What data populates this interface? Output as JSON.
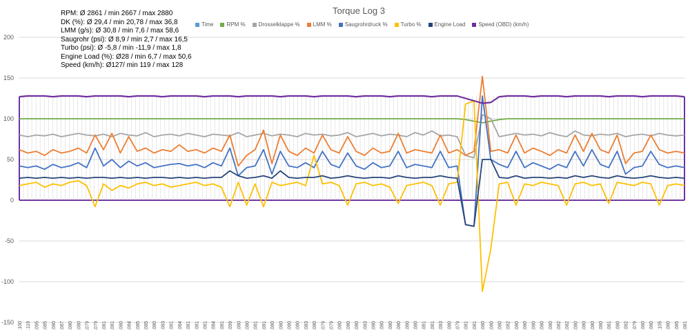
{
  "chart_data": {
    "type": "line",
    "title": "Torque Log 3",
    "ylim": [
      -150,
      200
    ],
    "yticks": [
      -150,
      -100,
      -50,
      0,
      50,
      100,
      150,
      200
    ],
    "stats": [
      "RPM: Ø 2861 / min 2667 / max 2880",
      "DK (%): Ø 29,4 / min 20,78 / max 36,8",
      "LMM (g/s): Ø 30,8 / min 7,6 / max 58,6",
      "Saugrohr (psi): Ø 8,9 / min 2,7 / max 16,5",
      "Turbo (psi): Ø -5,8 / min -11,9 / max 1,8",
      "Engine Load (%): Ø28 / min 6,7 / max 50,6",
      "Speed (km/h): Ø127/ min 119 / max 128"
    ],
    "x_labels": [
      "1:42.100",
      "1:44.119",
      "1:46.095",
      "1:48.085",
      "1:50.080",
      "1:52.087",
      "1:54.080",
      "1:56.080",
      "1:58.079",
      "2:00.079",
      "2:02.081",
      "2:04.081",
      "2:06.080",
      "2:08.084",
      "2:10.085",
      "2:12.085",
      "2:14.080",
      "2:16.083",
      "2:18.081",
      "2:20.084",
      "2:22.081",
      "2:24.081",
      "2:26.081",
      "2:28.084",
      "2:30.081",
      "2:32.099",
      "2:34.080",
      "2:36.080",
      "2:38.081",
      "2:40.081",
      "2:42.080",
      "2:44.080",
      "2:46.080",
      "2:48.080",
      "2:50.083",
      "2:52.080",
      "2:54.079",
      "2:56.079",
      "2:58.080",
      "3:00.080",
      "3:02.080",
      "3:04.083",
      "3:06.080",
      "3:08.080",
      "3:10.080",
      "3:12.080",
      "3:14.080",
      "3:16.080",
      "3:18.081",
      "3:20.081",
      "3:22.083",
      "3:24.080",
      "3:26.079",
      "3:28.081",
      "3:30.081",
      "3:32.080",
      "3:34.080",
      "3:36.080",
      "3:38.082",
      "3:40.080",
      "3:42.080",
      "3:44.080",
      "3:46.080",
      "3:48.080",
      "3:50.082",
      "3:52.082",
      "3:54.080",
      "3:56.080",
      "3:58.080",
      "4:00.080",
      "4:02.081",
      "4:04.080",
      "4:06.082",
      "4:08.079",
      "4:10.080",
      "4:12.080",
      "4:14.105",
      "4:16.080",
      "4:18.085",
      "4:20.081"
    ],
    "series": [
      {
        "name": "Time",
        "color": "#5b9bd5",
        "legend_only": true,
        "values": []
      },
      {
        "name": "RPM %",
        "color": "#70ad47",
        "values": [
          100,
          100,
          100,
          100,
          100,
          100,
          100,
          100,
          100,
          100,
          100,
          100,
          100,
          100,
          100,
          100,
          100,
          100,
          100,
          100,
          100,
          100,
          100,
          100,
          100,
          100,
          100,
          100,
          100,
          100,
          100,
          100,
          100,
          100,
          100,
          100,
          100,
          100,
          100,
          100,
          100,
          100,
          100,
          100,
          100,
          100,
          100,
          100,
          100,
          100,
          100,
          100,
          100,
          99,
          97,
          95,
          97,
          99,
          100,
          100,
          100,
          100,
          100,
          100,
          100,
          100,
          100,
          100,
          100,
          100,
          100,
          100,
          100,
          100,
          100,
          100,
          100,
          100,
          100,
          100
        ]
      },
      {
        "name": "Drosselklappe %",
        "color": "#a5a5a5",
        "values": [
          80,
          78,
          80,
          79,
          81,
          78,
          80,
          82,
          80,
          79,
          81,
          78,
          82,
          80,
          79,
          83,
          78,
          80,
          81,
          79,
          82,
          80,
          78,
          81,
          80,
          79,
          83,
          78,
          80,
          82,
          79,
          81,
          80,
          78,
          82,
          80,
          81,
          79,
          80,
          83,
          78,
          80,
          82,
          79,
          81,
          80,
          78,
          83,
          80,
          85,
          79,
          80,
          78,
          55,
          52,
          105,
          100,
          78,
          80,
          82,
          80,
          81,
          79,
          83,
          80,
          78,
          85,
          80,
          79,
          81,
          80,
          82,
          78,
          80,
          81,
          79,
          82,
          80,
          79,
          80
        ]
      },
      {
        "name": "LMM %",
        "color": "#ed7d31",
        "values": [
          62,
          58,
          60,
          55,
          62,
          58,
          60,
          64,
          58,
          80,
          62,
          82,
          58,
          78,
          60,
          64,
          58,
          62,
          60,
          68,
          60,
          62,
          58,
          64,
          60,
          80,
          42,
          55,
          62,
          86,
          45,
          80,
          60,
          55,
          64,
          58,
          80,
          62,
          58,
          78,
          60,
          55,
          64,
          58,
          60,
          82,
          58,
          62,
          60,
          58,
          80,
          58,
          62,
          55,
          60,
          152,
          60,
          62,
          58,
          80,
          58,
          64,
          60,
          55,
          62,
          58,
          80,
          60,
          82,
          62,
          58,
          80,
          45,
          58,
          60,
          80,
          62,
          58,
          60,
          58
        ]
      },
      {
        "name": "Saugrohrdruck %",
        "color": "#4472c4",
        "dash": true,
        "values": [
          42,
          40,
          42,
          38,
          44,
          40,
          42,
          46,
          40,
          64,
          42,
          50,
          40,
          48,
          42,
          46,
          40,
          42,
          44,
          45,
          42,
          44,
          40,
          46,
          42,
          64,
          30,
          40,
          42,
          62,
          32,
          60,
          42,
          40,
          46,
          40,
          60,
          44,
          40,
          58,
          42,
          38,
          46,
          40,
          42,
          60,
          40,
          44,
          42,
          40,
          60,
          40,
          42,
          -30,
          -32,
          128,
          50,
          44,
          40,
          60,
          40,
          46,
          42,
          38,
          44,
          40,
          60,
          42,
          62,
          44,
          40,
          60,
          32,
          40,
          42,
          60,
          44,
          40,
          42,
          40
        ]
      },
      {
        "name": "Turbo %",
        "color": "#ffc000",
        "values": [
          18,
          20,
          22,
          16,
          20,
          18,
          22,
          24,
          18,
          -8,
          20,
          12,
          18,
          15,
          20,
          22,
          18,
          20,
          16,
          18,
          20,
          22,
          18,
          20,
          16,
          -8,
          22,
          -6,
          20,
          -8,
          22,
          18,
          20,
          22,
          18,
          55,
          20,
          22,
          18,
          -6,
          20,
          22,
          18,
          20,
          16,
          -4,
          18,
          20,
          22,
          18,
          -6,
          20,
          22,
          118,
          122,
          -112,
          -60,
          20,
          22,
          -6,
          20,
          18,
          22,
          20,
          18,
          -6,
          20,
          22,
          18,
          20,
          -4,
          22,
          20,
          18,
          22,
          20,
          -6,
          18,
          20,
          18
        ]
      },
      {
        "name": "Engine Load",
        "color": "#264478",
        "values": [
          27,
          28,
          27,
          28,
          27,
          28,
          27,
          28,
          27,
          28,
          28,
          27,
          28,
          27,
          28,
          27,
          28,
          28,
          27,
          28,
          27,
          28,
          27,
          28,
          28,
          36,
          30,
          27,
          28,
          30,
          27,
          36,
          28,
          27,
          28,
          28,
          30,
          27,
          28,
          30,
          28,
          27,
          28,
          28,
          27,
          30,
          28,
          27,
          28,
          28,
          30,
          28,
          27,
          -30,
          -32,
          50,
          50,
          28,
          27,
          30,
          27,
          28,
          28,
          27,
          28,
          27,
          30,
          28,
          30,
          28,
          27,
          30,
          28,
          27,
          28,
          30,
          28,
          27,
          28,
          27
        ]
      },
      {
        "name": "Speed (OBD) (km/h)",
        "color": "#7030a0",
        "values": [
          127,
          128,
          128,
          128,
          127,
          128,
          128,
          128,
          127,
          128,
          128,
          128,
          128,
          127,
          128,
          128,
          128,
          127,
          128,
          128,
          128,
          128,
          127,
          128,
          128,
          128,
          127,
          128,
          128,
          128,
          128,
          127,
          128,
          128,
          128,
          127,
          128,
          128,
          128,
          128,
          127,
          128,
          128,
          128,
          127,
          128,
          128,
          128,
          128,
          127,
          128,
          128,
          128,
          125,
          122,
          119,
          120,
          127,
          128,
          128,
          128,
          127,
          128,
          128,
          128,
          127,
          128,
          128,
          128,
          128,
          127,
          128,
          128,
          128,
          127,
          128,
          128,
          128,
          128,
          127
        ]
      }
    ]
  }
}
